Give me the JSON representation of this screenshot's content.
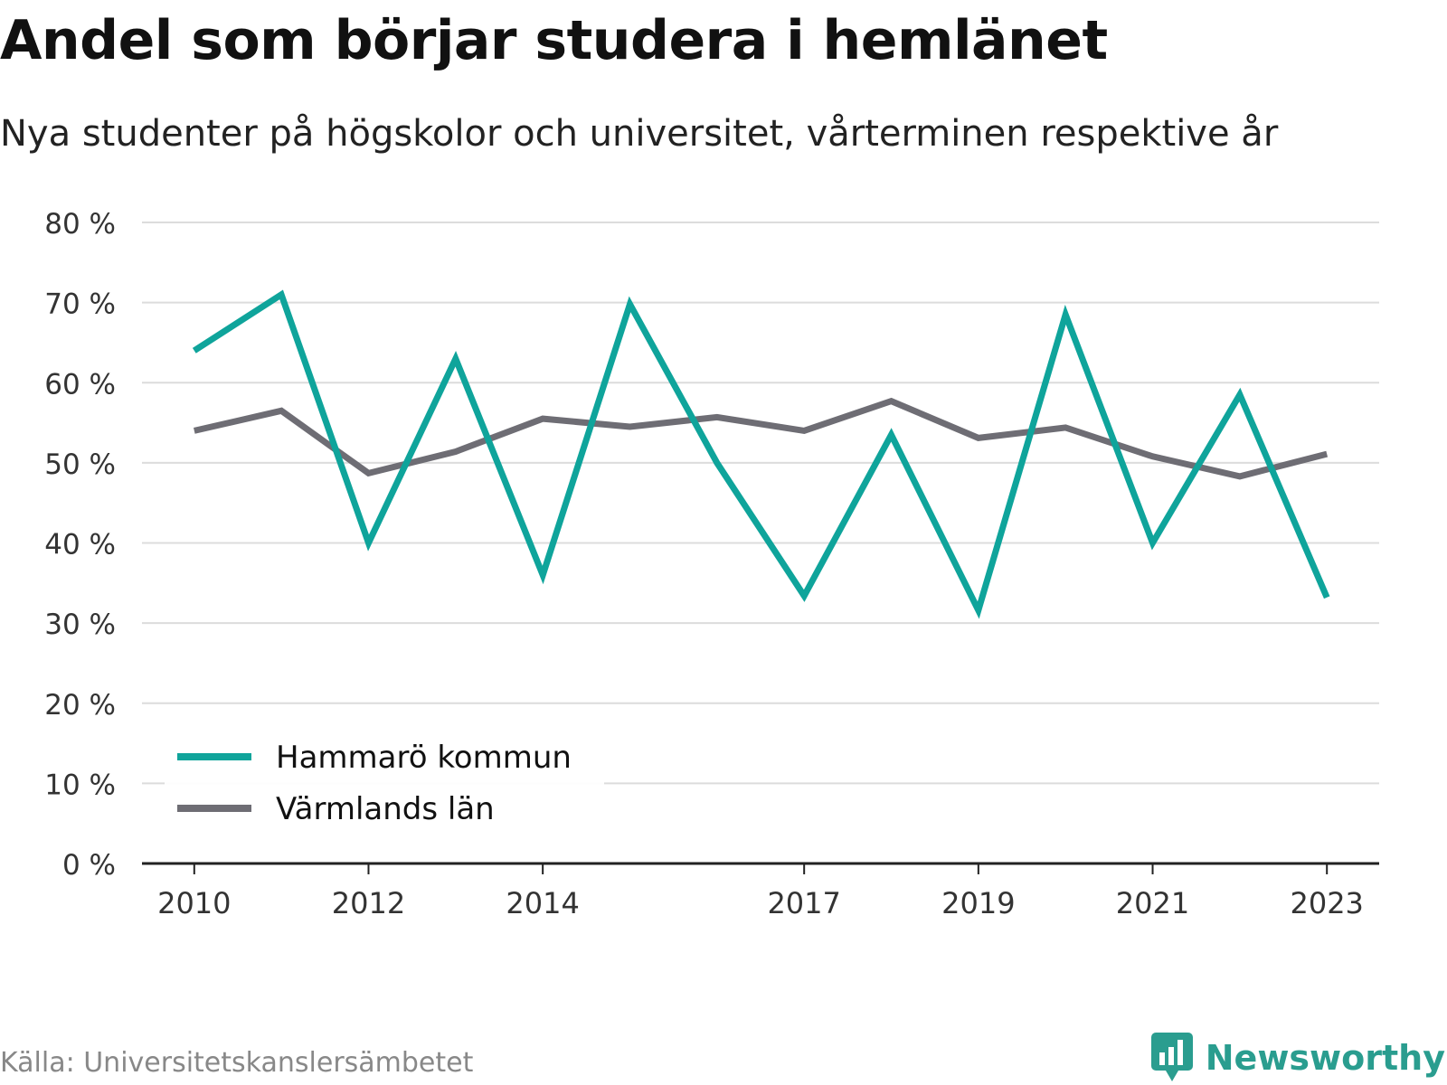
{
  "title": "Andel som börjar studera i hemlänet",
  "subtitle": "Nya studenter på högskolor och universitet, vårterminen respektive år",
  "source": "Källa: Universitetskanslersämbetet",
  "brand": "Newsworthy",
  "colors": {
    "teal": "#0fa49b",
    "gray": "#6e6d74",
    "grid": "#dcdcdc",
    "axis": "#222222",
    "brand": "#2a9d8f"
  },
  "chart_data": {
    "type": "line",
    "x": [
      2010,
      2011,
      2012,
      2013,
      2014,
      2015,
      2016,
      2017,
      2018,
      2019,
      2020,
      2021,
      2022,
      2023
    ],
    "x_tick_labels": [
      "2010",
      "2012",
      "2014",
      "2017",
      "2019",
      "2021",
      "2023"
    ],
    "x_ticks": [
      2010,
      2012,
      2014,
      2017,
      2019,
      2021,
      2023
    ],
    "y_tick_labels": [
      "0 %",
      "10 %",
      "20 %",
      "30 %",
      "40 %",
      "50 %",
      "60 %",
      "70 %",
      "80 %"
    ],
    "y_ticks": [
      0,
      10,
      20,
      30,
      40,
      50,
      60,
      70,
      80
    ],
    "ylim": [
      0,
      80
    ],
    "xlim": [
      2009.4,
      2023.6
    ],
    "grid": true,
    "legend_position": "bottom-left",
    "series": [
      {
        "name": "Hammarö kommun",
        "color": "#0fa49b",
        "values": [
          64,
          71,
          40,
          63,
          36,
          69.8,
          50,
          33.4,
          53.5,
          31.6,
          68.5,
          40,
          58.5,
          33.2
        ]
      },
      {
        "name": "Värmlands län",
        "color": "#6e6d74",
        "values": [
          54,
          56.5,
          48.7,
          51.4,
          55.5,
          54.5,
          55.7,
          54,
          57.7,
          53.1,
          54.4,
          50.8,
          48.3,
          51.1
        ]
      }
    ]
  }
}
